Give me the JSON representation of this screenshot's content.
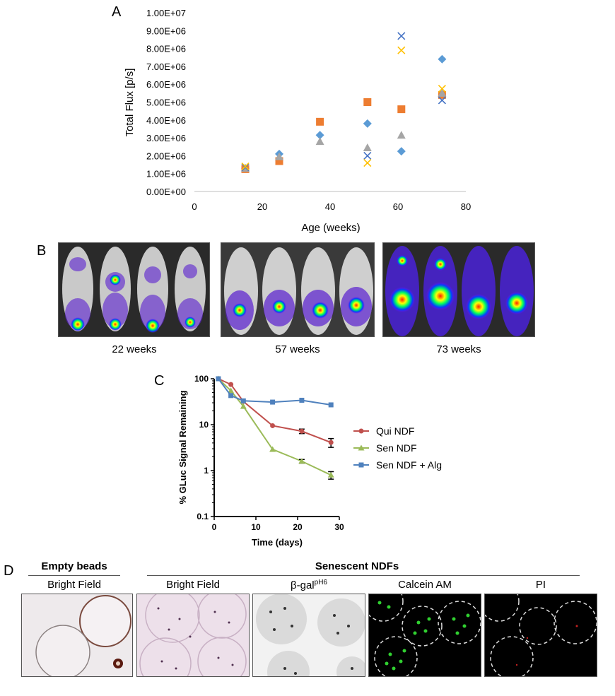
{
  "panel_labels": {
    "a": "A",
    "b": "B",
    "c": "C",
    "d": "D"
  },
  "chart_data": [
    {
      "type": "scatter",
      "xlabel": "Age (weeks)",
      "ylabel": "Total Flux [p/s]",
      "xlim": [
        0,
        80
      ],
      "ylim": [
        0,
        10000000
      ],
      "x_ticks": [
        "0",
        "20",
        "40",
        "60",
        "80"
      ],
      "y_ticks": [
        "0.00E+00",
        "1.00E+06",
        "2.00E+06",
        "3.00E+06",
        "4.00E+06",
        "5.00E+06",
        "6.00E+06",
        "7.00E+06",
        "8.00E+06",
        "9.00E+06",
        "1.00E+07"
      ],
      "grid": false,
      "series": [
        {
          "marker": "diamond",
          "color": "#5b9bd5",
          "points": [
            [
              15,
              1300000
            ],
            [
              25,
              2100000
            ],
            [
              37,
              3150000
            ],
            [
              51,
              3800000
            ],
            [
              61,
              2250000
            ],
            [
              73,
              7400000
            ]
          ]
        },
        {
          "marker": "square",
          "color": "#ed7d31",
          "points": [
            [
              15,
              1250000
            ],
            [
              25,
              1700000
            ],
            [
              37,
              3900000
            ],
            [
              51,
              5000000
            ],
            [
              61,
              4600000
            ],
            [
              73,
              5400000
            ]
          ]
        },
        {
          "marker": "triangle",
          "color": "#a5a5a5",
          "points": [
            [
              15,
              1300000
            ],
            [
              25,
              1950000
            ],
            [
              37,
              2800000
            ],
            [
              51,
              2450000
            ],
            [
              61,
              3150000
            ],
            [
              73,
              5500000
            ]
          ]
        },
        {
          "marker": "x",
          "color": "#4472c4",
          "points": [
            [
              15,
              1350000
            ],
            [
              51,
              2000000
            ],
            [
              61,
              8700000
            ],
            [
              73,
              5100000
            ]
          ]
        },
        {
          "marker": "x",
          "color": "#ffc000",
          "points": [
            [
              15,
              1400000
            ],
            [
              51,
              1600000
            ],
            [
              61,
              7900000
            ],
            [
              73,
              5750000
            ]
          ]
        }
      ]
    },
    {
      "type": "line",
      "xlabel": "Time (days)",
      "ylabel": "% GLuc Signal Remaining",
      "xlim": [
        0,
        30
      ],
      "ylim": [
        0.1,
        100
      ],
      "y_scale": "log",
      "x_ticks": [
        "0",
        "10",
        "20",
        "30"
      ],
      "y_ticks": [
        "0.1",
        "1",
        "10",
        "100"
      ],
      "legend_position": "right",
      "series": [
        {
          "name": "Qui NDF",
          "color": "#c0504d",
          "marker": "circle",
          "x": [
            1,
            4,
            7,
            14,
            21,
            28
          ],
          "y": [
            100,
            75,
            32,
            9.5,
            7.2,
            4.1
          ],
          "err": [
            0,
            0,
            0,
            0,
            0.8,
            0.9
          ]
        },
        {
          "name": "Sen NDF",
          "color": "#9bbb59",
          "marker": "triangle",
          "x": [
            1,
            4,
            7,
            14,
            21,
            28
          ],
          "y": [
            100,
            55,
            25,
            2.9,
            1.6,
            0.8
          ],
          "err": [
            0,
            0,
            0,
            0,
            0.15,
            0.15
          ]
        },
        {
          "name": "Sen NDF + Alg",
          "color": "#4f81bd",
          "marker": "square",
          "x": [
            1,
            4,
            7,
            14,
            21,
            28
          ],
          "y": [
            100,
            43,
            33,
            31,
            34,
            27
          ],
          "err": [
            0,
            0,
            0,
            0,
            0,
            0
          ]
        }
      ]
    }
  ],
  "panel_b": {
    "captions": [
      "22 weeks",
      "57 weeks",
      "73 weeks"
    ]
  },
  "panel_d": {
    "group_left": "Empty beads",
    "group_right": "Senescent NDFs",
    "labels": [
      "Bright Field",
      "Bright Field",
      "β-gal",
      "Calcein AM",
      "PI"
    ],
    "beta_gal_superscript": "pH6"
  }
}
